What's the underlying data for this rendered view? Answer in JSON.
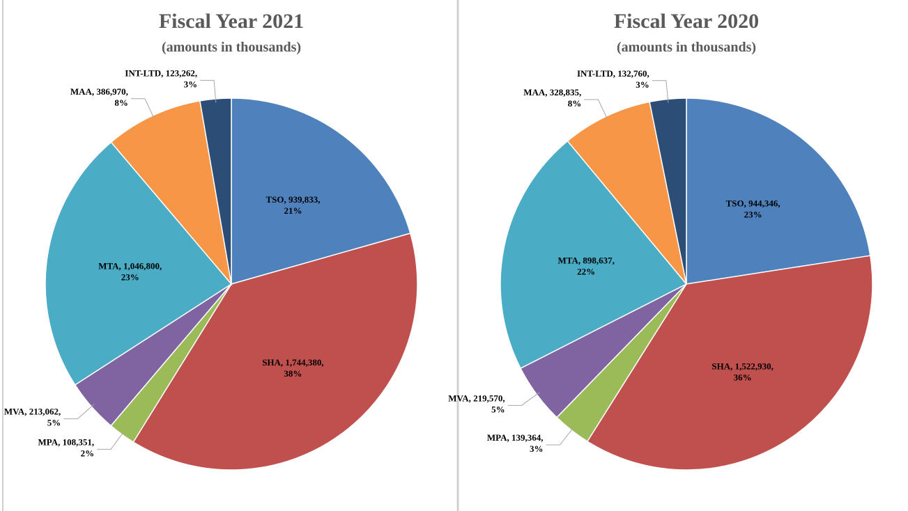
{
  "chart_data": [
    {
      "type": "pie",
      "title": "Fiscal Year 2021",
      "subtitle": "(amounts in thousands)",
      "categories": [
        "TSO",
        "SHA",
        "MPA",
        "MVA",
        "MTA",
        "MAA",
        "INT-LTD"
      ],
      "values": [
        939833,
        1744380,
        108351,
        213062,
        1046800,
        386970,
        123262
      ],
      "value_labels": [
        "939,833",
        "1,744,380",
        "108,351",
        "213,062",
        "1,046,800",
        "386,970",
        "123,262"
      ],
      "percent_labels": [
        "21%",
        "38%",
        "2%",
        "5%",
        "23%",
        "8%",
        "3%"
      ],
      "colors": [
        "#4f81bd",
        "#c0504d",
        "#9bbb59",
        "#8064a2",
        "#4bacc6",
        "#f79646",
        "#2c4d75"
      ]
    },
    {
      "type": "pie",
      "title": "Fiscal Year 2020",
      "subtitle": "(amounts in thousands)",
      "categories": [
        "TSO",
        "SHA",
        "MPA",
        "MVA",
        "MTA",
        "MAA",
        "INT-LTD"
      ],
      "values": [
        944346,
        1522930,
        139364,
        219570,
        898637,
        328835,
        132760
      ],
      "value_labels": [
        "944,346",
        "1,522,930",
        "139,364",
        "219,570",
        "898,637",
        "328,835",
        "132,760"
      ],
      "percent_labels": [
        "23%",
        "36%",
        "3%",
        "5%",
        "22%",
        "8%",
        "3%"
      ],
      "colors": [
        "#4f81bd",
        "#c0504d",
        "#9bbb59",
        "#8064a2",
        "#4bacc6",
        "#f79646",
        "#2c4d75"
      ]
    }
  ]
}
